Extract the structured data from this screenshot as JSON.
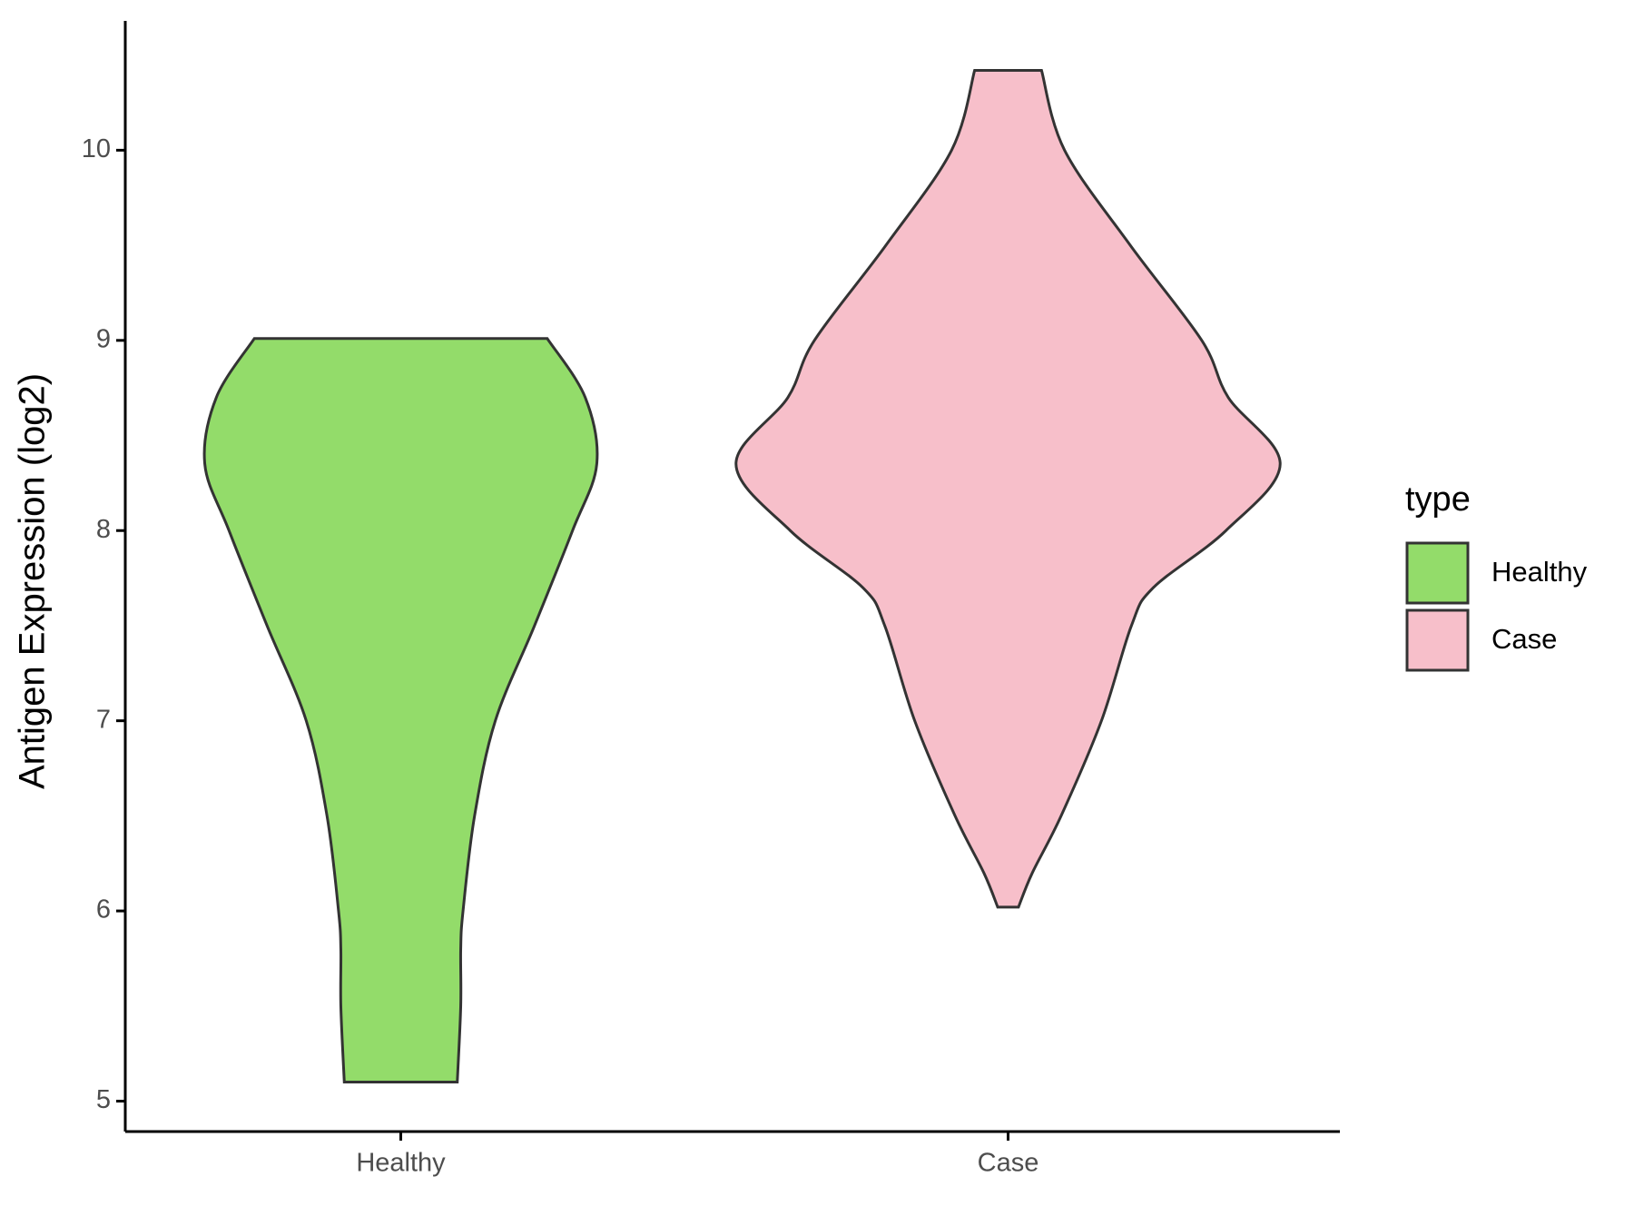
{
  "chart_data": {
    "type": "violin",
    "y_label": "Antigen Expression (log2)",
    "categories": [
      "Healthy",
      "Case"
    ],
    "legend_title": "type",
    "ylim": [
      4.84,
      10.68
    ],
    "yticks": [
      5,
      6,
      7,
      8,
      9,
      10
    ],
    "series": [
      {
        "name": "Healthy",
        "color": "#93dc6a",
        "y": [
          5.1,
          5.5,
          5.8,
          6.0,
          6.5,
          7.0,
          7.5,
          8.0,
          8.35,
          8.7,
          9.01
        ],
        "density": [
          49,
          52,
          52,
          54,
          64,
          82,
          116,
          149,
          170,
          160,
          127
        ]
      },
      {
        "name": "Case",
        "color": "#f7bfca",
        "y": [
          6.02,
          6.2,
          6.5,
          7.0,
          7.5,
          7.7,
          8.0,
          8.35,
          8.7,
          9.0,
          9.5,
          10.0,
          10.42
        ],
        "density": [
          9,
          21,
          46,
          81,
          107,
          126,
          189,
          236,
          191,
          168,
          106,
          49,
          29
        ]
      }
    ]
  }
}
